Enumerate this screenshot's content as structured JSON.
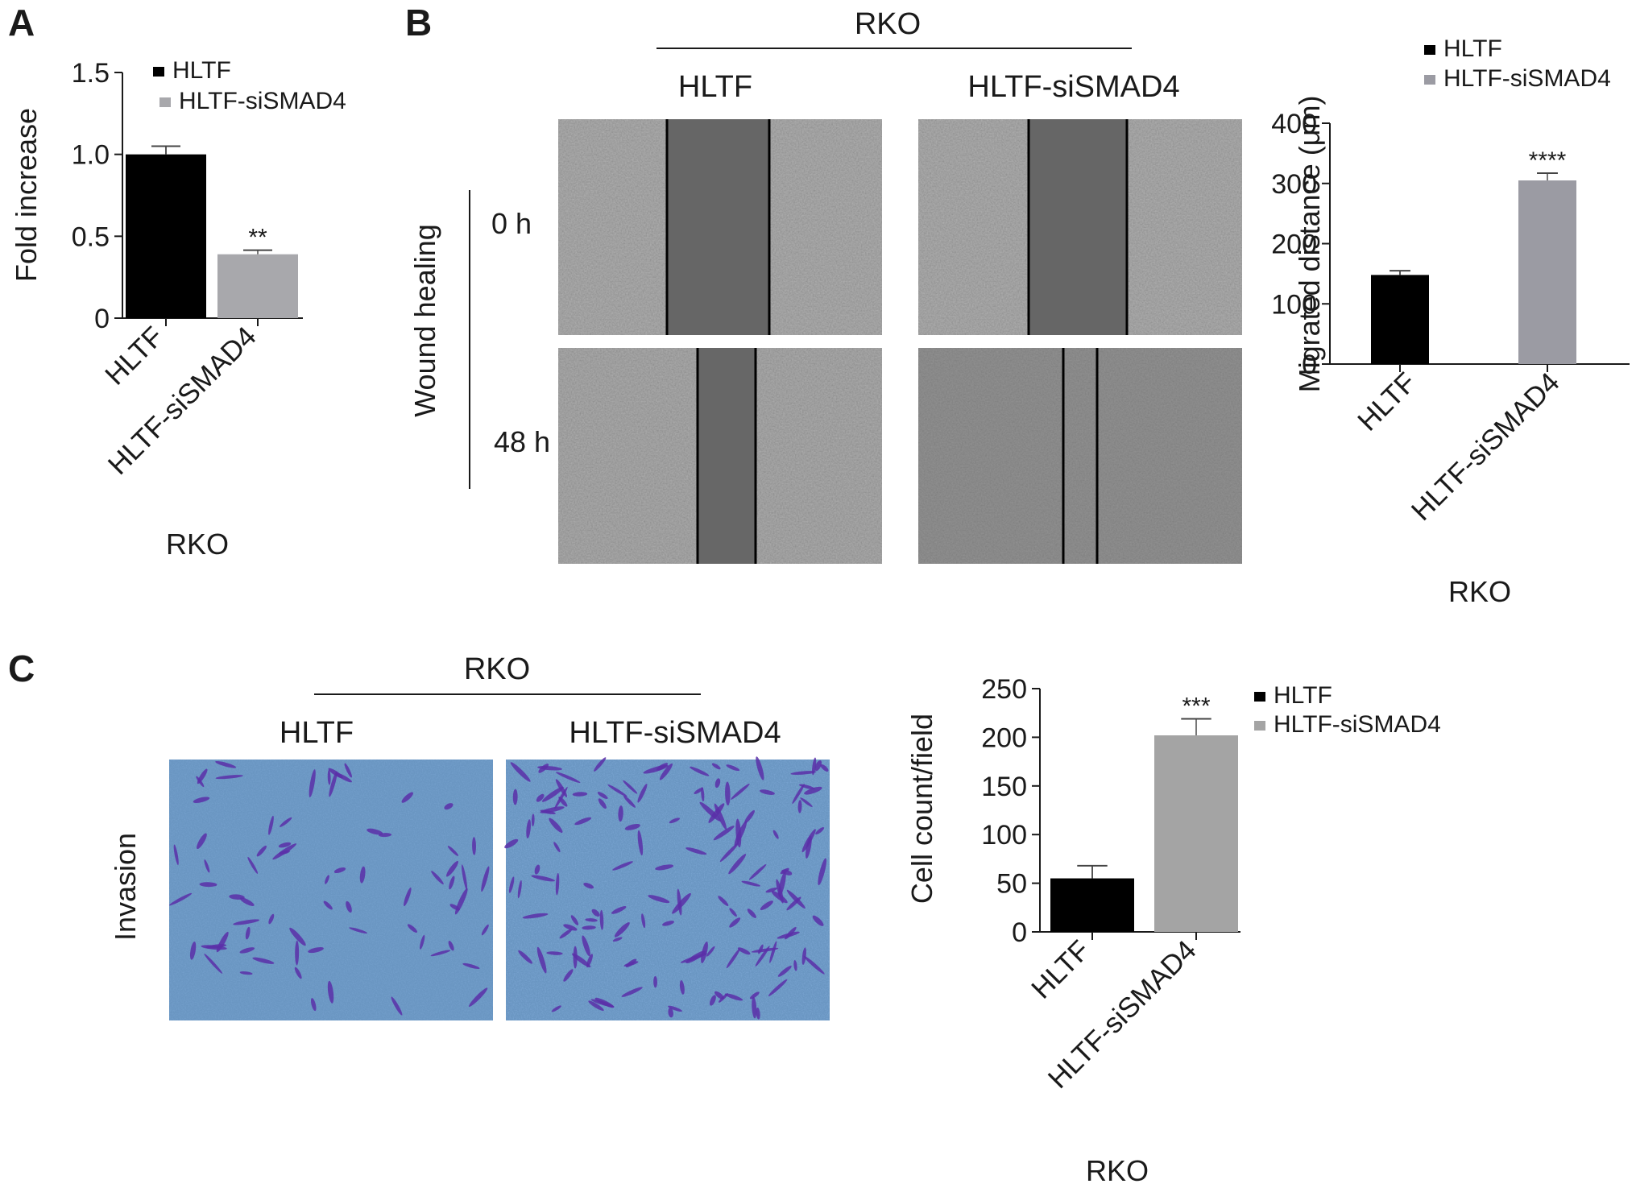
{
  "panels": {
    "A": {
      "letter": "A"
    },
    "B": {
      "letter": "B",
      "group": "RKO",
      "col_labels": [
        "HLTF",
        "HLTF-siSMAD4"
      ],
      "assay_label": "Wound healing",
      "row_labels": [
        "0 h",
        "48 h"
      ]
    },
    "C": {
      "letter": "C",
      "group": "RKO",
      "col_labels": [
        "HLTF",
        "HLTF-siSMAD4"
      ],
      "assay_label": "Invasion"
    }
  },
  "colors": {
    "HLTF": "#000000",
    "HLTF-siSMAD4_A": "#a8a8ac",
    "HLTF-siSMAD4_B": "#9b9ba3",
    "HLTF-siSMAD4_C": "#a4a4a4"
  },
  "chart_data": [
    {
      "id": "A",
      "type": "bar",
      "categories": [
        "HLTF",
        "HLTF-siSMAD4"
      ],
      "values": [
        1.0,
        0.39
      ],
      "errors": [
        0.05,
        0.025
      ],
      "significance": [
        "",
        "**"
      ],
      "ylabel": "Fold increase",
      "xlabel": "RKO",
      "ylim": [
        0,
        1.5
      ],
      "yticks": [
        "0",
        "0.5",
        "1.0",
        "1.5"
      ],
      "ytick_values": [
        0,
        0.5,
        1.0,
        1.5
      ],
      "legend": [
        "HLTF",
        "HLTF-siSMAD4"
      ],
      "legend_position": "top-right",
      "grid": false
    },
    {
      "id": "B",
      "type": "bar",
      "categories": [
        "HLTF",
        "HLTF-siSMAD4"
      ],
      "values": [
        148,
        305
      ],
      "errors": [
        7,
        12
      ],
      "significance": [
        "",
        "****"
      ],
      "ylabel": "Migrated distance (μm)",
      "xlabel": "RKO",
      "ylim": [
        0,
        400
      ],
      "yticks": [
        "0",
        "100",
        "200",
        "300",
        "400"
      ],
      "ytick_values": [
        0,
        100,
        200,
        300,
        400
      ],
      "legend": [
        "HLTF",
        "HLTF-siSMAD4"
      ],
      "legend_position": "top",
      "grid": false
    },
    {
      "id": "C",
      "type": "bar",
      "categories": [
        "HLTF",
        "HLTF-siSMAD4"
      ],
      "values": [
        55,
        202
      ],
      "errors": [
        13,
        17
      ],
      "significance": [
        "",
        "***"
      ],
      "ylabel": "Cell count/field",
      "xlabel": "RKO",
      "ylim": [
        0,
        250
      ],
      "yticks": [
        "0",
        "50",
        "100",
        "150",
        "200",
        "250"
      ],
      "ytick_values": [
        0,
        50,
        100,
        150,
        200,
        250
      ],
      "legend": [
        "HLTF",
        "HLTF-siSMAD4"
      ],
      "legend_position": "top-right",
      "grid": false
    }
  ]
}
